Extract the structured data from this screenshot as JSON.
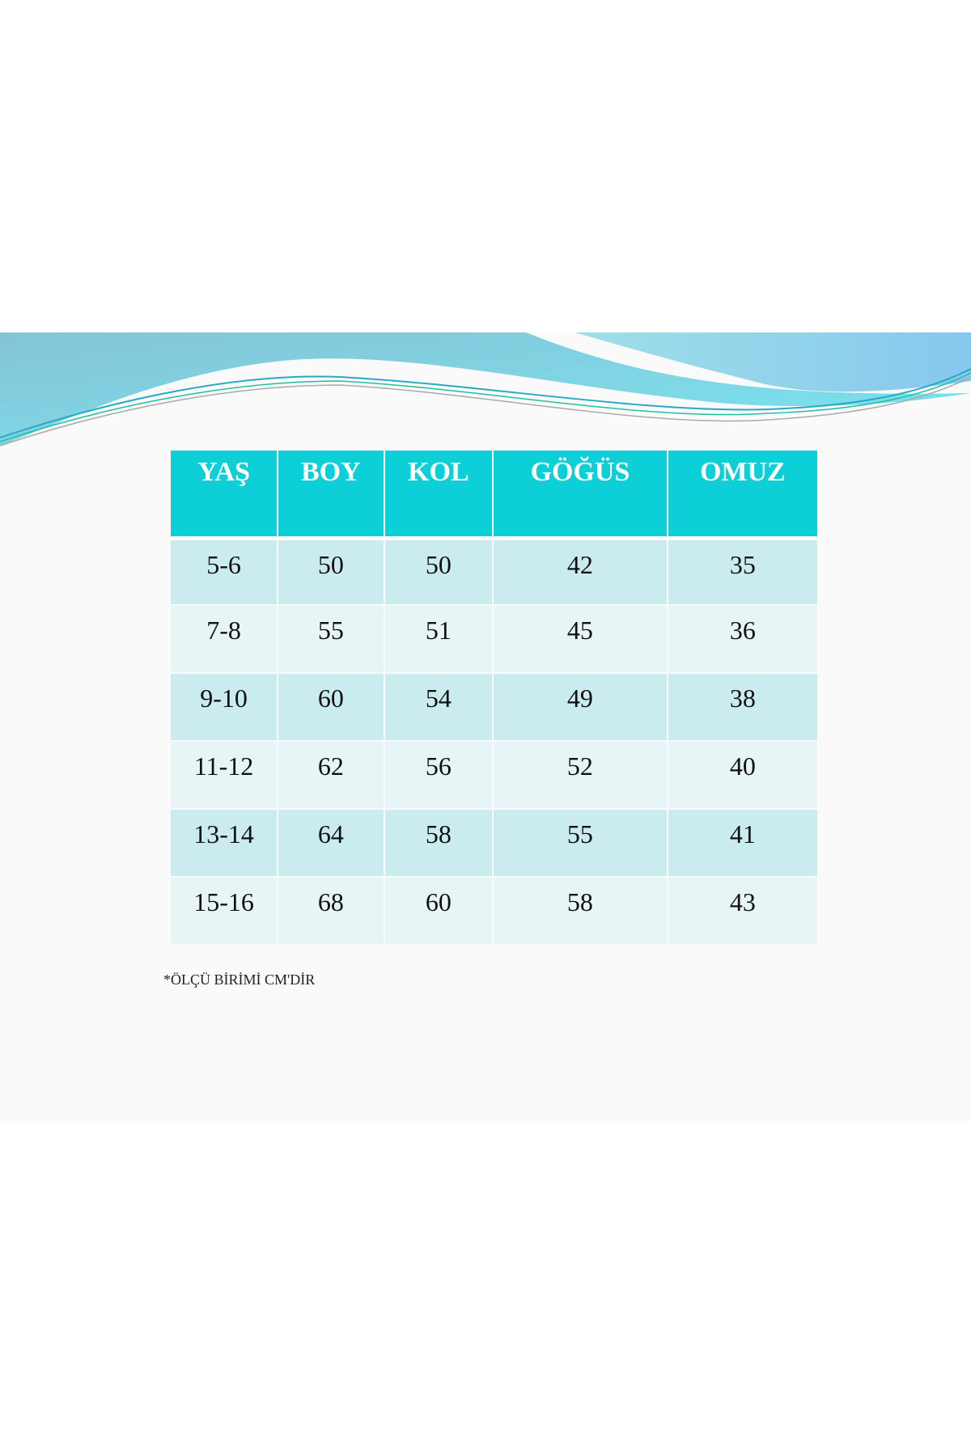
{
  "table": {
    "headers": [
      "YAŞ",
      "BOY",
      "KOL",
      "GÖĞÜS",
      "OMUZ"
    ],
    "rows": [
      [
        "5-6",
        "50",
        "50",
        "42",
        "35"
      ],
      [
        "7-8",
        "55",
        "51",
        "45",
        "36"
      ],
      [
        "9-10",
        "60",
        "54",
        "49",
        "38"
      ],
      [
        "11-12",
        "62",
        "56",
        "52",
        "40"
      ],
      [
        "13-14",
        "64",
        "58",
        "55",
        "41"
      ],
      [
        "15-16",
        "68",
        "60",
        "58",
        "43"
      ]
    ]
  },
  "footnote": "*ÖLÇÜ BİRİMİ CM'DİR",
  "colors": {
    "header": "#0ccfd8",
    "row_odd": "#cbecef",
    "row_even": "#e7f5f6"
  }
}
